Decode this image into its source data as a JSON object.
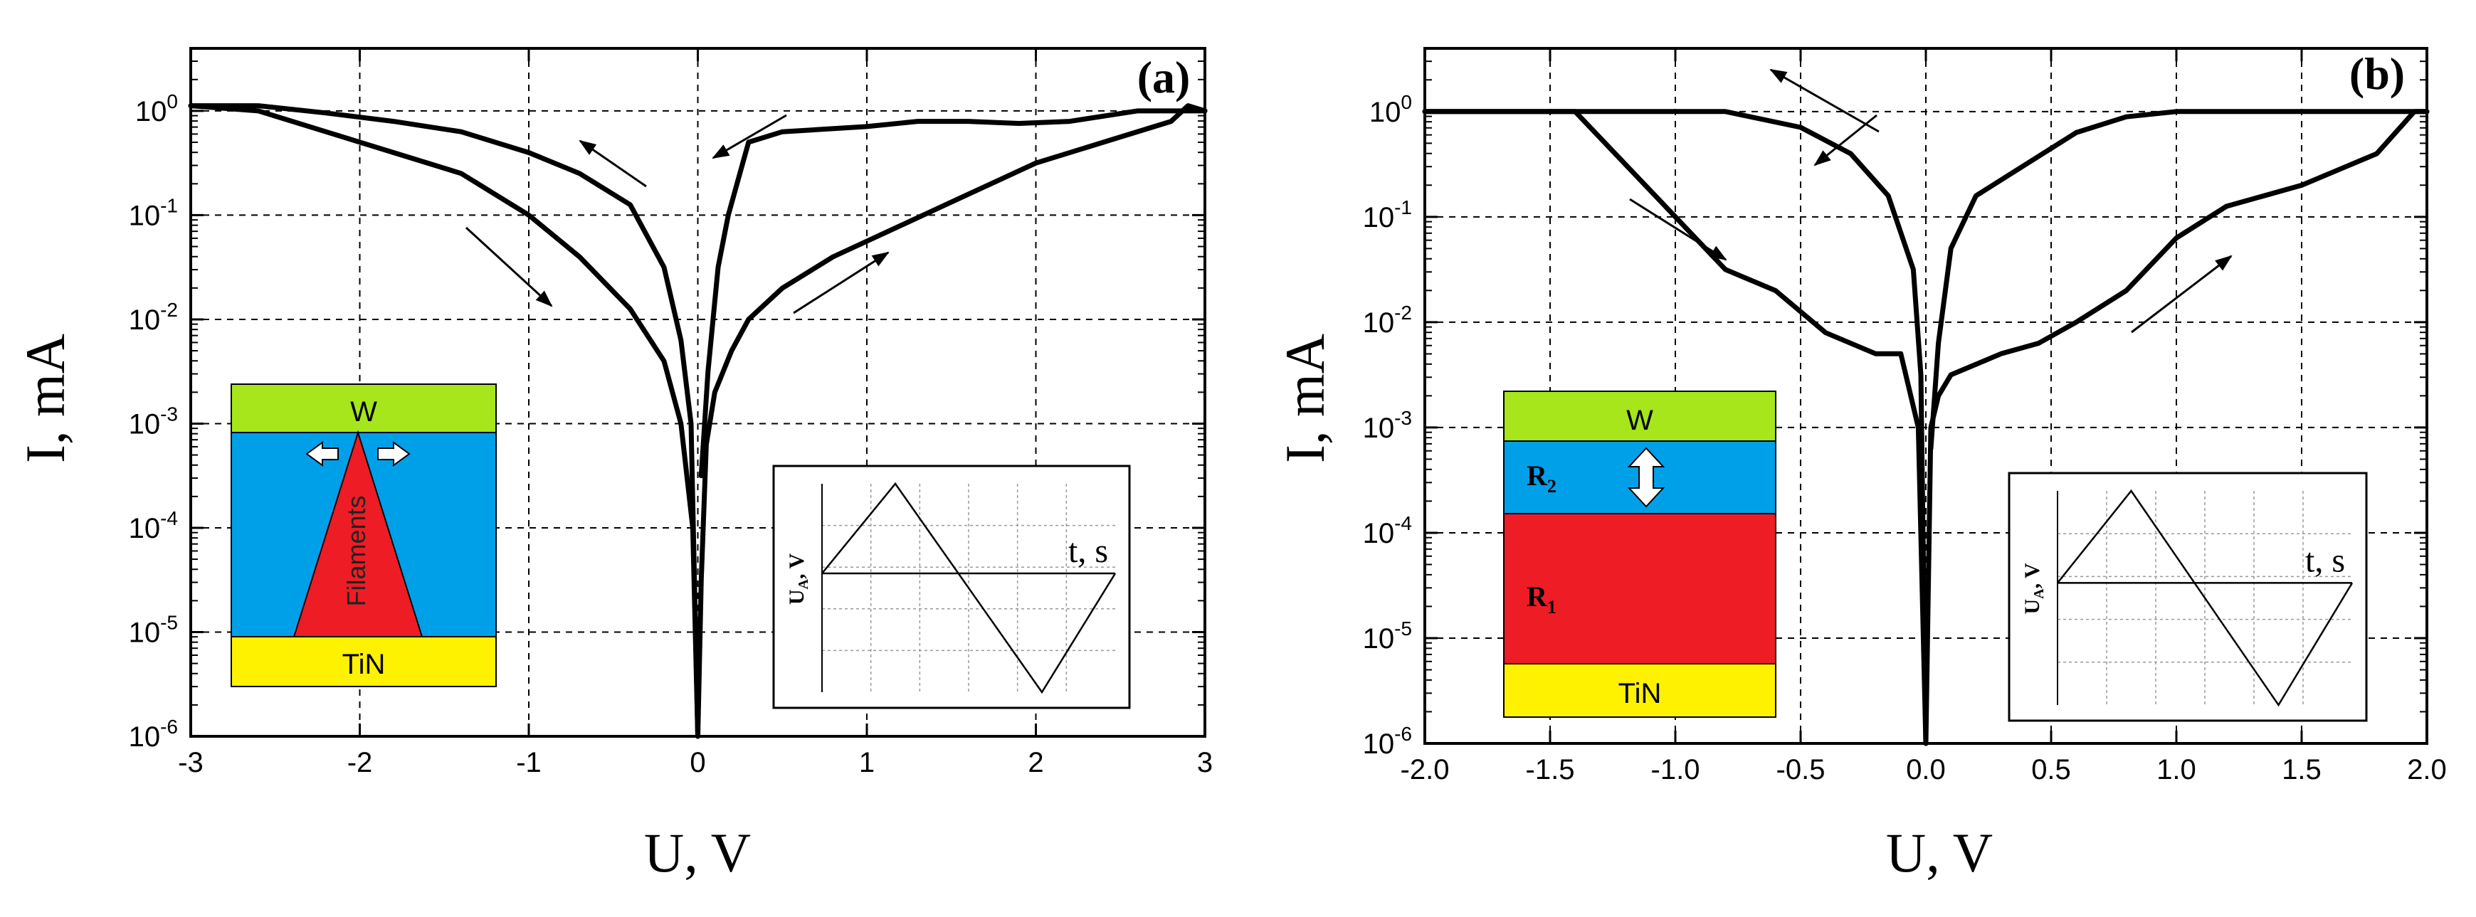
{
  "chart_data": [
    {
      "panel_label": "(a)",
      "type": "line",
      "xlabel": "U, V",
      "ylabel": "I, mA",
      "yscale": "log",
      "xlim": [
        -3,
        3
      ],
      "ylim_exp": [
        -6,
        0.6
      ],
      "x_ticks": [
        -3,
        -2,
        -1,
        0,
        1,
        2,
        3
      ],
      "x_tick_labels": [
        "-3",
        "-2",
        "-1",
        "0",
        "1",
        "2",
        "3"
      ],
      "y_tick_exps": [
        -6,
        -5,
        -4,
        -3,
        -2,
        -1,
        0
      ],
      "y_tick_labels": [
        {
          "base": "10",
          "exp": "-6"
        },
        {
          "base": "10",
          "exp": "-5"
        },
        {
          "base": "10",
          "exp": "-4"
        },
        {
          "base": "10",
          "exp": "-3"
        },
        {
          "base": "10",
          "exp": "-2"
        },
        {
          "base": "10",
          "exp": "-1"
        },
        {
          "base": "10",
          "exp": "0"
        }
      ],
      "grid": true,
      "series": [
        {
          "name": "positive-sweep-lower",
          "points": [
            [
              0,
              -6
            ],
            [
              0.02,
              -4.5
            ],
            [
              0.05,
              -3.2
            ],
            [
              0.1,
              -2.7
            ],
            [
              0.2,
              -2.3
            ],
            [
              0.3,
              -2.0
            ],
            [
              0.5,
              -1.7
            ],
            [
              0.8,
              -1.4
            ],
            [
              1.2,
              -1.1
            ],
            [
              1.6,
              -0.8
            ],
            [
              2.0,
              -0.5
            ],
            [
              2.4,
              -0.3
            ],
            [
              2.8,
              -0.1
            ],
            [
              2.9,
              0.05
            ],
            [
              3.0,
              0.0
            ]
          ]
        },
        {
          "name": "positive-sweep-upper",
          "points": [
            [
              0.02,
              -3.5
            ],
            [
              0.06,
              -2.5
            ],
            [
              0.12,
              -1.5
            ],
            [
              0.18,
              -1.0
            ],
            [
              0.3,
              -0.3
            ],
            [
              0.5,
              -0.2
            ],
            [
              0.7,
              -0.18
            ],
            [
              1.0,
              -0.15
            ],
            [
              1.3,
              -0.1
            ],
            [
              1.6,
              -0.1
            ],
            [
              1.9,
              -0.12
            ],
            [
              2.2,
              -0.1
            ],
            [
              2.6,
              0.0
            ],
            [
              3.0,
              0.0
            ]
          ]
        },
        {
          "name": "negative-sweep-upper",
          "points": [
            [
              -3.0,
              0.05
            ],
            [
              -2.6,
              0.05
            ],
            [
              -2.2,
              -0.02
            ],
            [
              -1.8,
              -0.1
            ],
            [
              -1.4,
              -0.2
            ],
            [
              -1.0,
              -0.4
            ],
            [
              -0.7,
              -0.6
            ],
            [
              -0.4,
              -0.9
            ],
            [
              -0.2,
              -1.5
            ],
            [
              -0.1,
              -2.2
            ],
            [
              -0.04,
              -3.0
            ],
            [
              0,
              -6
            ]
          ]
        },
        {
          "name": "negative-sweep-lower",
          "points": [
            [
              -3.0,
              0.05
            ],
            [
              -2.6,
              0.0
            ],
            [
              -2.2,
              -0.2
            ],
            [
              -1.8,
              -0.4
            ],
            [
              -1.4,
              -0.6
            ],
            [
              -1.0,
              -1.0
            ],
            [
              -0.7,
              -1.4
            ],
            [
              -0.4,
              -1.9
            ],
            [
              -0.2,
              -2.4
            ],
            [
              -0.1,
              -3.0
            ],
            [
              -0.03,
              -4.0
            ],
            [
              0,
              -6
            ]
          ]
        }
      ],
      "inset_diagram": {
        "labels": {
          "top": "W",
          "middle": "Filaments",
          "bottom": "TiN"
        },
        "colors": {
          "top": "#a6e61a",
          "middle": "#00a0e9",
          "filament": "#ee1c24",
          "bottom": "#fff200"
        }
      },
      "inset_waveform": {
        "ylabel_main": "U",
        "ylabel_sub": "A",
        "ylabel_unit": ", V",
        "xlabel": "t, s"
      }
    },
    {
      "panel_label": "(b)",
      "type": "line",
      "xlabel": "U, V",
      "ylabel": "I, mA",
      "yscale": "log",
      "xlim": [
        -2.0,
        2.0
      ],
      "ylim_exp": [
        -6,
        0.6
      ],
      "x_ticks": [
        -2.0,
        -1.5,
        -1.0,
        -0.5,
        0.0,
        0.5,
        1.0,
        1.5,
        2.0
      ],
      "x_tick_labels": [
        "-2.0",
        "-1.5",
        "-1.0",
        "-0.5",
        "0.0",
        "0.5",
        "1.0",
        "1.5",
        "2.0"
      ],
      "y_tick_exps": [
        -6,
        -5,
        -4,
        -3,
        -2,
        -1,
        0
      ],
      "y_tick_labels": [
        {
          "base": "10",
          "exp": "-6"
        },
        {
          "base": "10",
          "exp": "-5"
        },
        {
          "base": "10",
          "exp": "-4"
        },
        {
          "base": "10",
          "exp": "-3"
        },
        {
          "base": "10",
          "exp": "-2"
        },
        {
          "base": "10",
          "exp": "-1"
        },
        {
          "base": "10",
          "exp": "0"
        }
      ],
      "grid": true,
      "series": [
        {
          "name": "positive-sweep-lower",
          "points": [
            [
              0,
              -6
            ],
            [
              0.02,
              -3.0
            ],
            [
              0.05,
              -2.7
            ],
            [
              0.1,
              -2.5
            ],
            [
              0.2,
              -2.4
            ],
            [
              0.3,
              -2.3
            ],
            [
              0.45,
              -2.2
            ],
            [
              0.6,
              -2.0
            ],
            [
              0.8,
              -1.7
            ],
            [
              1.0,
              -1.2
            ],
            [
              1.2,
              -0.9
            ],
            [
              1.5,
              -0.7
            ],
            [
              1.8,
              -0.4
            ],
            [
              1.95,
              0.0
            ],
            [
              2.0,
              0.0
            ]
          ]
        },
        {
          "name": "positive-sweep-upper",
          "points": [
            [
              0.02,
              -3.2
            ],
            [
              0.05,
              -2.2
            ],
            [
              0.1,
              -1.3
            ],
            [
              0.2,
              -0.8
            ],
            [
              0.4,
              -0.5
            ],
            [
              0.6,
              -0.2
            ],
            [
              0.8,
              -0.05
            ],
            [
              1.0,
              0.0
            ],
            [
              1.5,
              0.0
            ],
            [
              2.0,
              0.0
            ]
          ]
        },
        {
          "name": "negative-sweep-upper",
          "points": [
            [
              -2.0,
              0.0
            ],
            [
              -1.4,
              0.0
            ],
            [
              -0.8,
              0.0
            ],
            [
              -0.5,
              -0.15
            ],
            [
              -0.3,
              -0.4
            ],
            [
              -0.15,
              -0.8
            ],
            [
              -0.05,
              -1.5
            ],
            [
              -0.02,
              -2.5
            ],
            [
              0,
              -6
            ]
          ]
        },
        {
          "name": "negative-sweep-lower",
          "points": [
            [
              -2.0,
              0.0
            ],
            [
              -1.4,
              0.0
            ],
            [
              -1.2,
              -0.5
            ],
            [
              -1.0,
              -1.0
            ],
            [
              -0.8,
              -1.5
            ],
            [
              -0.6,
              -1.7
            ],
            [
              -0.4,
              -2.1
            ],
            [
              -0.2,
              -2.3
            ],
            [
              -0.1,
              -2.3
            ],
            [
              -0.03,
              -3.0
            ],
            [
              0,
              -6
            ]
          ]
        }
      ],
      "inset_diagram": {
        "labels": {
          "top": "W",
          "r2_main": "R",
          "r2_sub": "2",
          "r1_main": "R",
          "r1_sub": "1",
          "bottom": "TiN"
        },
        "colors": {
          "top": "#a6e61a",
          "r2": "#00a0e9",
          "r1": "#ee1c24",
          "bottom": "#fff200"
        }
      },
      "inset_waveform": {
        "ylabel_main": "U",
        "ylabel_sub": "A",
        "ylabel_unit": ", V",
        "xlabel": "t, s"
      }
    }
  ]
}
